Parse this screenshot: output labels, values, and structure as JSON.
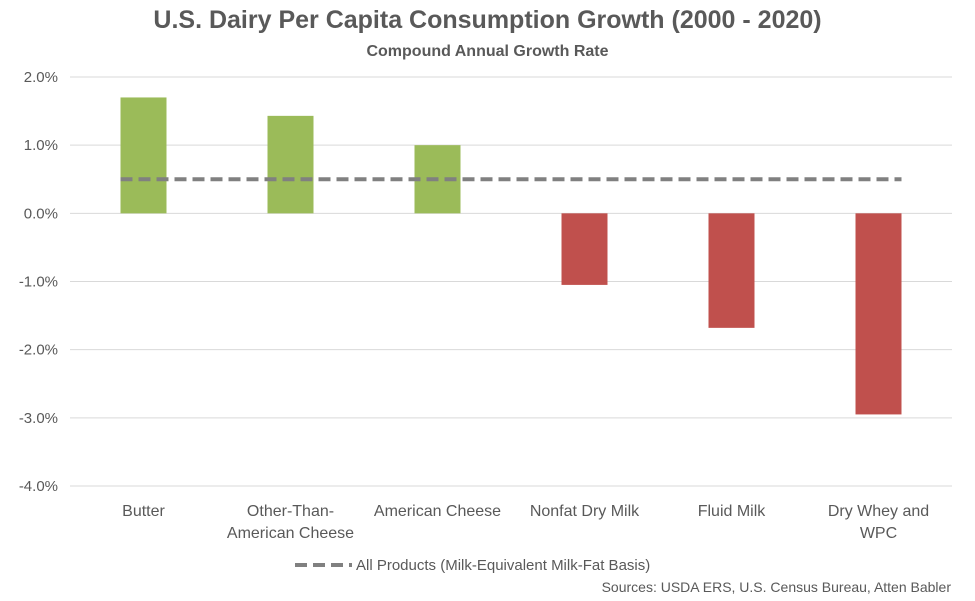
{
  "chart_data": {
    "type": "bar",
    "title": "U.S. Dairy Per Capita Consumption Growth (2000 - 2020)",
    "subtitle": "Compound Annual Growth Rate",
    "categories": [
      [
        "Butter"
      ],
      [
        "Other-Than-",
        "American Cheese"
      ],
      [
        "American Cheese"
      ],
      [
        "Nonfat  Dry Milk"
      ],
      [
        "Fluid Milk"
      ],
      [
        "Dry Whey and",
        "WPC"
      ]
    ],
    "values": [
      1.7,
      1.43,
      1.0,
      -1.05,
      -1.68,
      -2.95
    ],
    "reference_line": {
      "name": "All Products (Milk-Equivalent Milk-Fat Basis)",
      "value": 0.5,
      "color": "#808080",
      "style": "dashed"
    },
    "ylim": [
      -4,
      2
    ],
    "yticks": [
      "2.0%",
      "1.0%",
      "0.0%",
      "-1.0%",
      "-2.0%",
      "-3.0%",
      "-4.0%"
    ],
    "ytick_values": [
      2,
      1,
      0,
      -1,
      -2,
      -3,
      -4
    ],
    "positive_color": "#9BBB59",
    "negative_color": "#C0504D",
    "grid": true,
    "legend_position": "bottom"
  },
  "source": "Sources: USDA ERS, U.S. Census Bureau, Atten Babler"
}
